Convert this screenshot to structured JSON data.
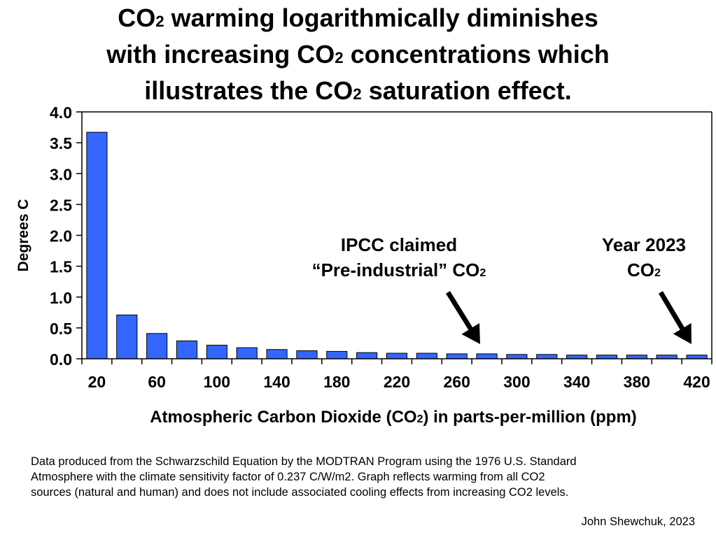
{
  "title": {
    "line1": [
      "CO",
      "2",
      " warming logarithmically diminishes"
    ],
    "line2": [
      "with increasing CO",
      "2",
      " concentrations which"
    ],
    "line3": [
      "illustrates the CO",
      "2",
      " saturation effect."
    ]
  },
  "annotations": {
    "ipcc": {
      "line1": "IPCC claimed",
      "line2_text": "“Pre-industrial” CO",
      "line2_sub": "2"
    },
    "year2023": {
      "line1": "Year 2023",
      "line2_text": "CO",
      "line2_sub": "2"
    }
  },
  "footer": {
    "line1": "Data produced from the Schwarzschild Equation by the MODTRAN Program using the 1976 U.S. Standard",
    "line2": "Atmosphere with the climate sensitivity factor of 0.237 C/W/m2.  Graph reflects warming from all CO2",
    "line3": "sources (natural and human) and does not include associated cooling effects from increasing CO2 levels.",
    "credit": "John Shewchuk, 2023"
  },
  "colors": {
    "bar": "#3366ff",
    "bar_stroke": "#000000",
    "text": "#000000"
  },
  "chart_data": {
    "type": "bar",
    "title": "CO2 warming logarithmically diminishes with increasing CO2 concentrations which illustrates the CO2 saturation effect.",
    "xlabel": "Atmospheric Carbon Dioxide (CO2) in parts-per-million (ppm)",
    "xlabel_parts": [
      "Atmospheric Carbon Dioxide (CO",
      "2",
      ") in parts-per-million (ppm)"
    ],
    "ylabel": "Degrees C",
    "ylim": [
      0,
      4.0
    ],
    "yticks": [
      "0.0",
      "0.5",
      "1.0",
      "1.5",
      "2.0",
      "2.5",
      "3.0",
      "3.5",
      "4.0"
    ],
    "categories": [
      20,
      40,
      60,
      80,
      100,
      120,
      140,
      160,
      180,
      200,
      220,
      240,
      260,
      280,
      300,
      320,
      340,
      360,
      380,
      400,
      420
    ],
    "xtick_labels": [
      "20",
      "60",
      "100",
      "140",
      "180",
      "220",
      "260",
      "300",
      "340",
      "380",
      "420"
    ],
    "values": [
      3.67,
      0.71,
      0.41,
      0.29,
      0.22,
      0.18,
      0.15,
      0.13,
      0.12,
      0.1,
      0.09,
      0.09,
      0.08,
      0.08,
      0.07,
      0.07,
      0.06,
      0.06,
      0.06,
      0.06,
      0.06
    ],
    "legend": "none",
    "grid": false
  }
}
